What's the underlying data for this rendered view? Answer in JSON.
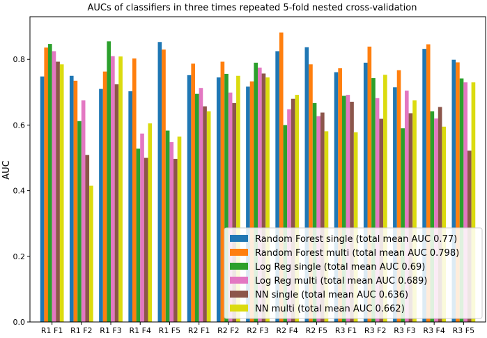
{
  "chart_data": {
    "type": "bar",
    "title": "AUCs of classifiers in three times repeated 5-fold nested cross-validation",
    "xlabel": "",
    "ylabel": "AUC",
    "ylim": [
      0,
      0.93
    ],
    "yticks": [
      "0.0",
      "0.2",
      "0.4",
      "0.6",
      "0.8"
    ],
    "grid": false,
    "legend_position": "lower-right",
    "categories": [
      "R1 F1",
      "R1 F2",
      "R1 F3",
      "R1 F4",
      "R1 F5",
      "R2 F1",
      "R2 F2",
      "R2 F3",
      "R2 F4",
      "R2 F5",
      "R3 F1",
      "R3 F2",
      "R3 F3",
      "R3 F4",
      "R3 F5"
    ],
    "series": [
      {
        "name": "Random Forest single (total mean AUC 0.77)",
        "color": "#1f77b4",
        "values": [
          0.748,
          0.75,
          0.71,
          0.703,
          0.853,
          0.752,
          0.745,
          0.717,
          0.825,
          0.837,
          0.761,
          0.79,
          0.715,
          0.832,
          0.799
        ]
      },
      {
        "name": "Random Forest multi (total mean AUC 0.798)",
        "color": "#ff7f0e",
        "values": [
          0.836,
          0.735,
          0.763,
          0.803,
          0.83,
          0.787,
          0.793,
          0.733,
          0.882,
          0.785,
          0.773,
          0.839,
          0.767,
          0.846,
          0.791
        ]
      },
      {
        "name": "Log Reg single (total mean AUC 0.69)",
        "color": "#2ca02c",
        "values": [
          0.847,
          0.612,
          0.855,
          0.528,
          0.583,
          0.695,
          0.756,
          0.79,
          0.6,
          0.667,
          0.689,
          0.743,
          0.59,
          0.642,
          0.742
        ]
      },
      {
        "name": "Log Reg multi (total mean AUC 0.689)",
        "color": "#e377c2",
        "values": [
          0.825,
          0.675,
          0.81,
          0.574,
          0.548,
          0.713,
          0.699,
          0.775,
          0.648,
          0.627,
          0.692,
          0.682,
          0.705,
          0.62,
          0.73
        ]
      },
      {
        "name": "NN single (total mean AUC 0.636)",
        "color": "#8c564b",
        "values": [
          0.793,
          0.509,
          0.724,
          0.5,
          0.497,
          0.657,
          0.667,
          0.757,
          0.68,
          0.638,
          0.671,
          0.619,
          0.636,
          0.655,
          0.522
        ]
      },
      {
        "name": "NN multi (total mean AUC 0.662)",
        "color": "#dbdb0f",
        "values": [
          0.785,
          0.415,
          0.809,
          0.605,
          0.565,
          0.642,
          0.75,
          0.745,
          0.692,
          0.581,
          0.578,
          0.753,
          0.675,
          0.595,
          0.73
        ]
      }
    ]
  }
}
